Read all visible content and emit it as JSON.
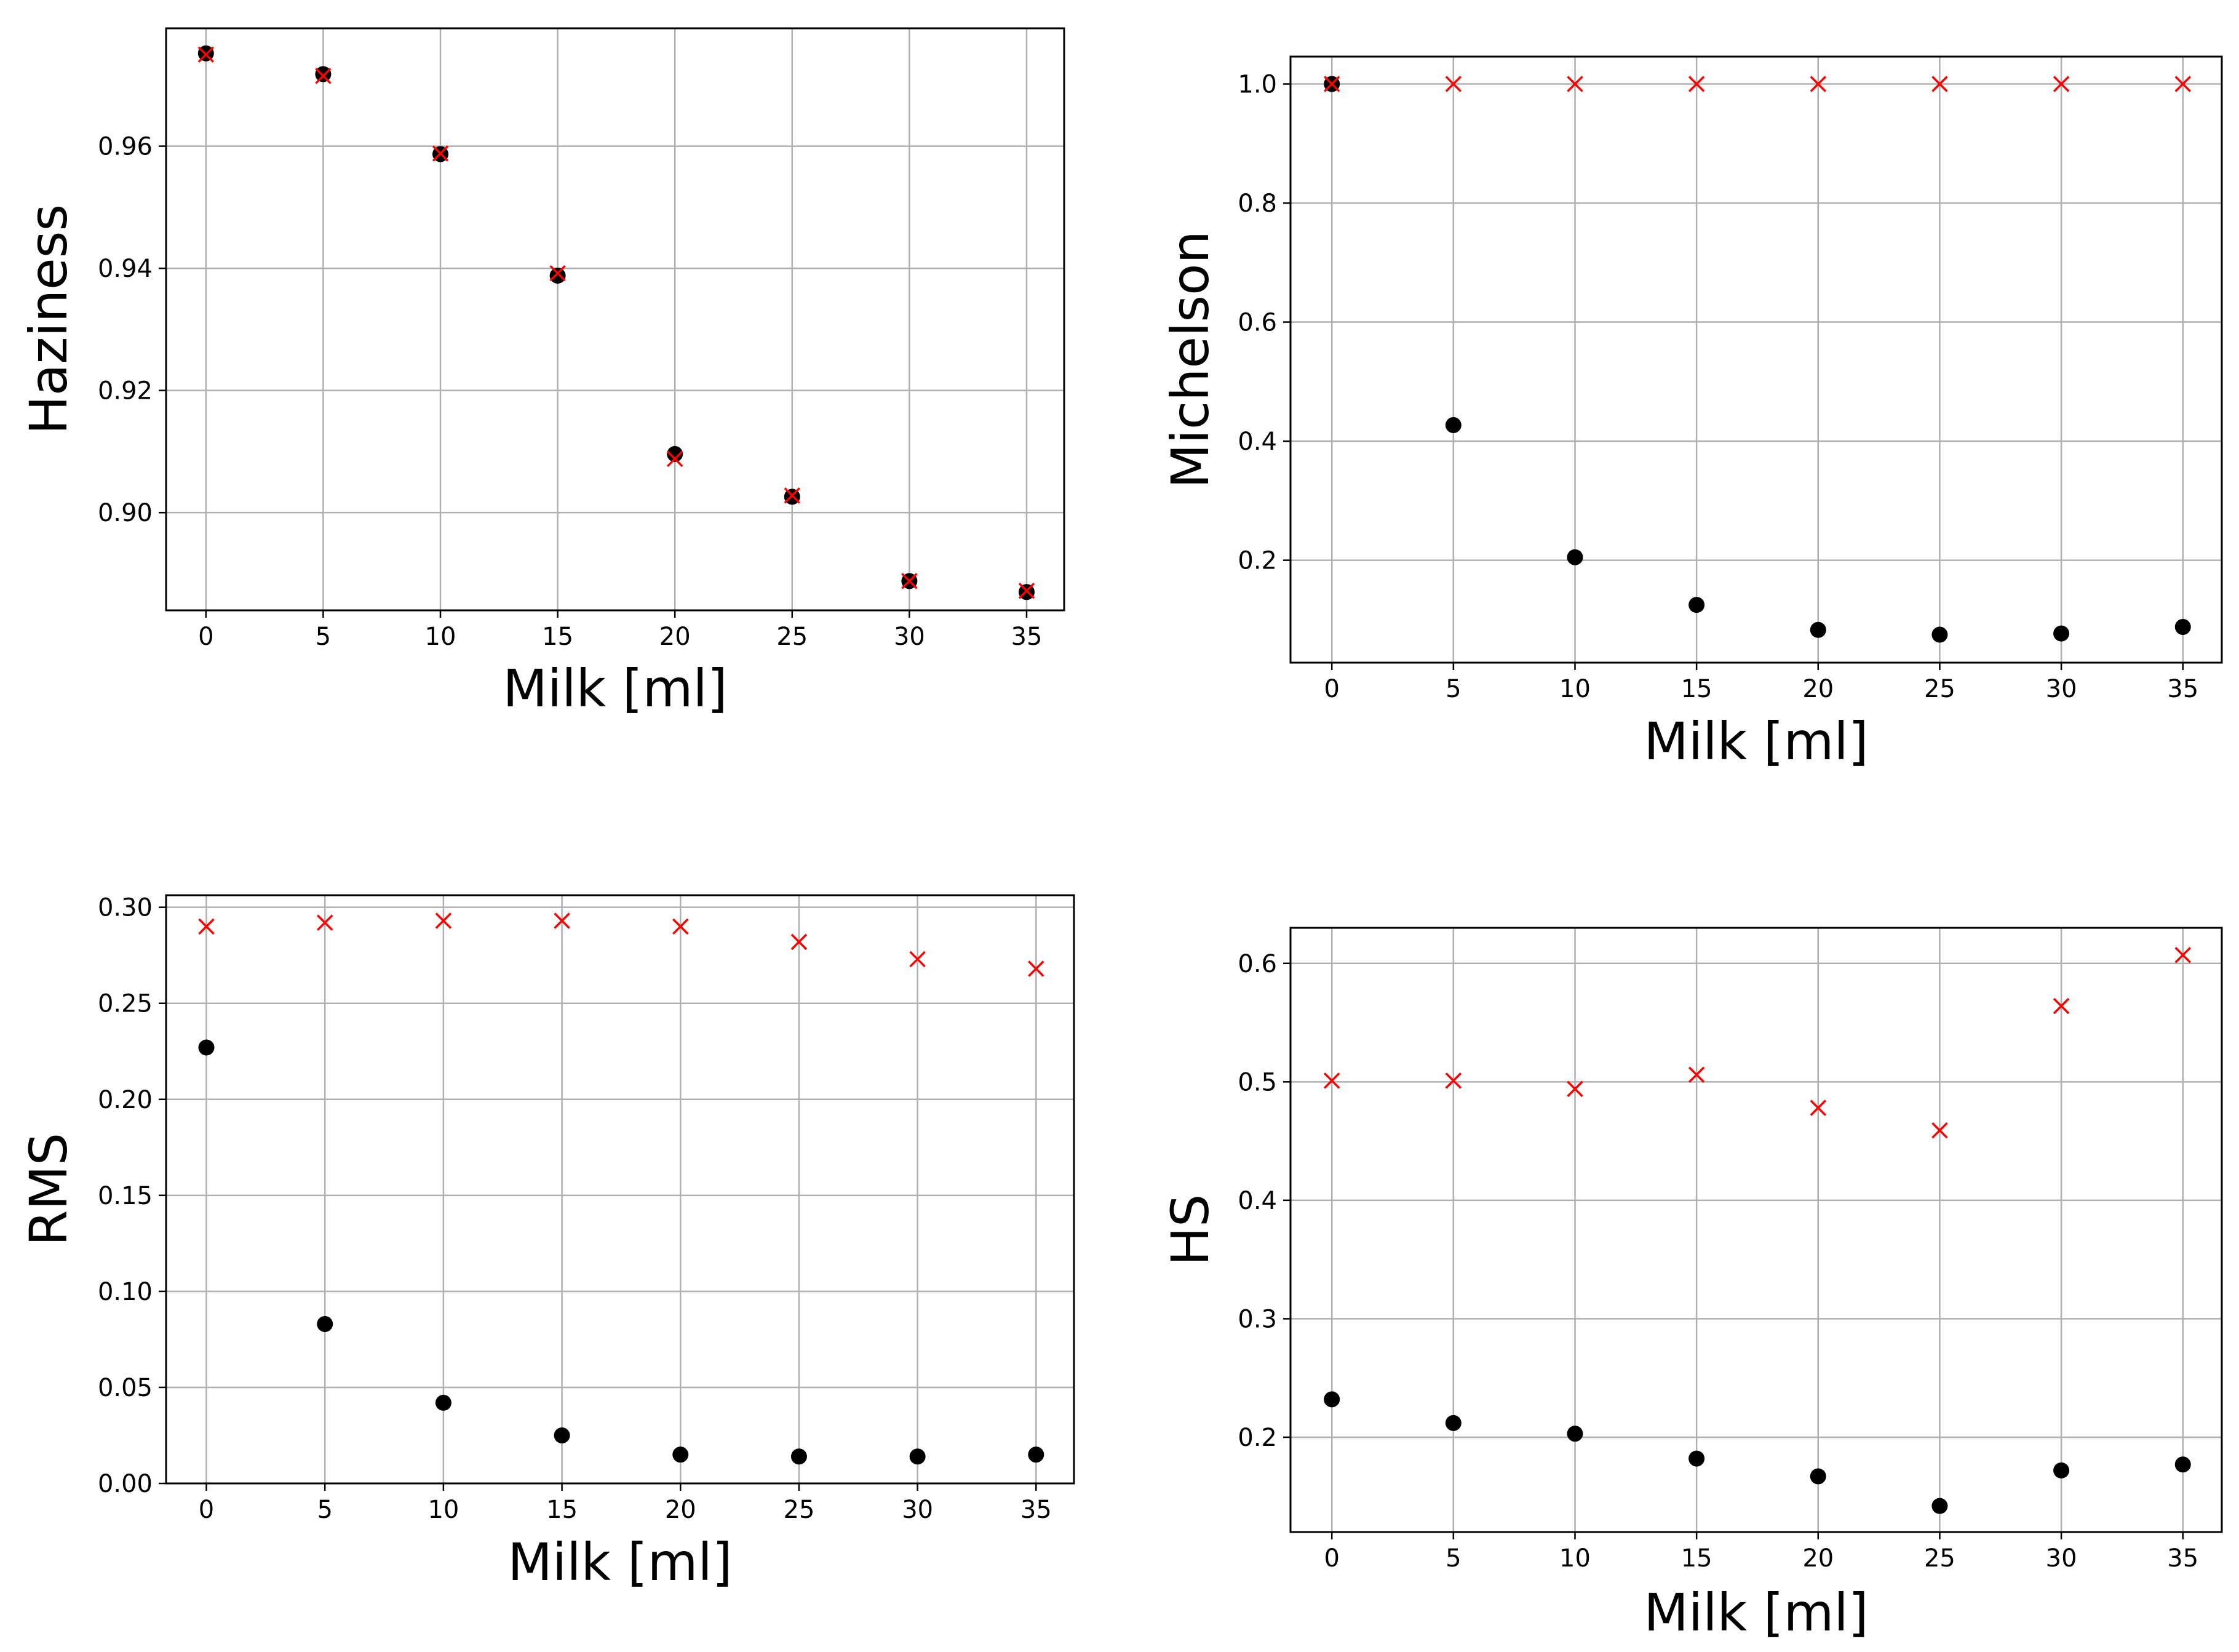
{
  "figure": {
    "style": {
      "background": "#ffffff",
      "grid_color": "#b0b0b0",
      "axes_color": "#000000",
      "cross_color": "#ff0000",
      "dot_color": "#000000"
    }
  },
  "chart_data": [
    {
      "type": "scatter",
      "xlabel": "Milk [ml]",
      "ylabel": "Haziness",
      "x": [
        0,
        5,
        10,
        15,
        20,
        25,
        30,
        35
      ],
      "xticks": [
        0,
        5,
        10,
        15,
        20,
        25,
        30,
        35
      ],
      "xlim": [
        -1.7,
        36.6
      ],
      "yticks": [
        0.9,
        0.92,
        0.94,
        0.96
      ],
      "ytick_labels": [
        "0.90",
        "0.92",
        "0.94",
        "0.96"
      ],
      "ylim": [
        0.884,
        0.9793
      ],
      "grid": true,
      "series": [
        {
          "name": "black-dots",
          "marker": "circle",
          "color": "#000000",
          "values": [
            0.9752,
            0.9718,
            0.9587,
            0.9388,
            0.9096,
            0.9026,
            0.8888,
            0.887
          ]
        },
        {
          "name": "red-crosses",
          "marker": "x",
          "color": "#ff0000",
          "values": [
            0.975,
            0.9715,
            0.9588,
            0.9392,
            0.9088,
            0.9028,
            0.8888,
            0.8872
          ]
        }
      ]
    },
    {
      "type": "scatter",
      "xlabel": "Milk [ml]",
      "ylabel": "Michelson",
      "x": [
        0,
        5,
        10,
        15,
        20,
        25,
        30,
        35
      ],
      "xticks": [
        0,
        5,
        10,
        15,
        20,
        25,
        30,
        35
      ],
      "xlim": [
        -1.7,
        36.6
      ],
      "yticks": [
        0.2,
        0.4,
        0.6,
        0.8,
        1.0
      ],
      "ytick_labels": [
        "0.2",
        "0.4",
        "0.6",
        "0.8",
        "1.0"
      ],
      "ylim": [
        0.028,
        1.046
      ],
      "grid": true,
      "series": [
        {
          "name": "black-dots",
          "marker": "circle",
          "color": "#000000",
          "values": [
            1.0,
            0.427,
            0.205,
            0.125,
            0.083,
            0.075,
            0.077,
            0.088
          ]
        },
        {
          "name": "red-crosses",
          "marker": "x",
          "color": "#ff0000",
          "values": [
            1.0,
            1.0,
            1.0,
            1.0,
            1.0,
            1.0,
            1.0,
            1.0
          ]
        }
      ]
    },
    {
      "type": "scatter",
      "xlabel": "Milk [ml]",
      "ylabel": "RMS",
      "x": [
        0,
        5,
        10,
        15,
        20,
        25,
        30,
        35
      ],
      "xticks": [
        0,
        5,
        10,
        15,
        20,
        25,
        30,
        35
      ],
      "xlim": [
        -1.7,
        36.6
      ],
      "yticks": [
        0.0,
        0.05,
        0.1,
        0.15,
        0.2,
        0.25,
        0.3
      ],
      "ytick_labels": [
        "0.00",
        "0.05",
        "0.10",
        "0.15",
        "0.20",
        "0.25",
        "0.30"
      ],
      "ylim": [
        0.0,
        0.3063
      ],
      "grid": true,
      "series": [
        {
          "name": "black-dots",
          "marker": "circle",
          "color": "#000000",
          "values": [
            0.227,
            0.083,
            0.042,
            0.025,
            0.015,
            0.014,
            0.014,
            0.015
          ]
        },
        {
          "name": "red-crosses",
          "marker": "x",
          "color": "#ff0000",
          "values": [
            0.29,
            0.292,
            0.293,
            0.293,
            0.29,
            0.282,
            0.273,
            0.268
          ]
        }
      ]
    },
    {
      "type": "scatter",
      "xlabel": "Milk [ml]",
      "ylabel": "HS",
      "x": [
        0,
        5,
        10,
        15,
        20,
        25,
        30,
        35
      ],
      "xticks": [
        0,
        5,
        10,
        15,
        20,
        25,
        30,
        35
      ],
      "xlim": [
        -1.7,
        36.6
      ],
      "yticks": [
        0.2,
        0.3,
        0.4,
        0.5,
        0.6
      ],
      "ytick_labels": [
        "0.2",
        "0.3",
        "0.4",
        "0.5",
        "0.6"
      ],
      "ylim": [
        0.12,
        0.63
      ],
      "grid": true,
      "series": [
        {
          "name": "black-dots",
          "marker": "circle",
          "color": "#000000",
          "values": [
            0.232,
            0.212,
            0.203,
            0.182,
            0.167,
            0.142,
            0.172,
            0.177
          ]
        },
        {
          "name": "red-crosses",
          "marker": "x",
          "color": "#ff0000",
          "values": [
            0.501,
            0.501,
            0.494,
            0.506,
            0.478,
            0.459,
            0.564,
            0.607
          ]
        }
      ]
    }
  ]
}
